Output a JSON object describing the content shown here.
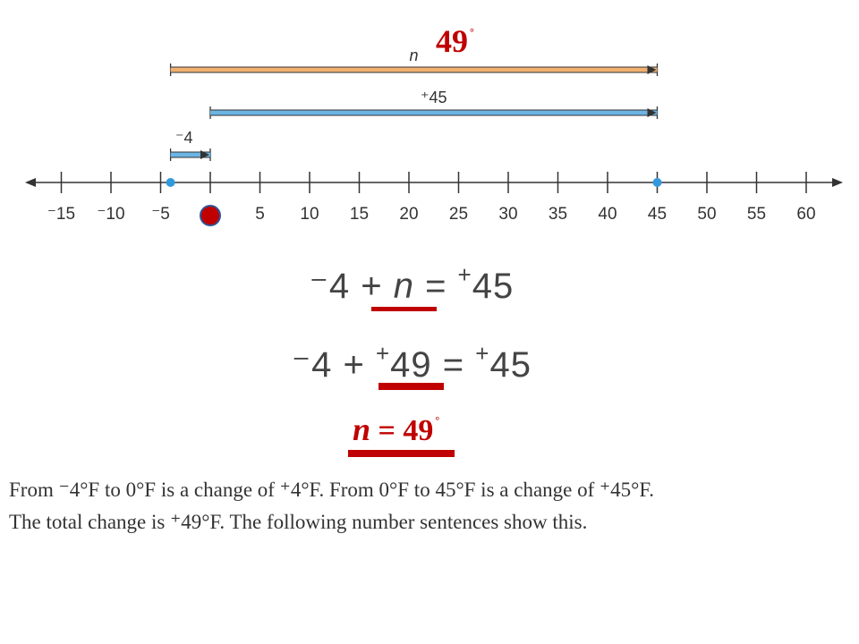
{
  "number_line": {
    "ticks": [
      "⁻15",
      "⁻10",
      "⁻5",
      "0",
      "5",
      "10",
      "15",
      "20",
      "25",
      "30",
      "35",
      "40",
      "45",
      "50",
      "55",
      "60"
    ],
    "tick_values": [
      -15,
      -10,
      -5,
      0,
      5,
      10,
      15,
      20,
      25,
      30,
      35,
      40,
      45,
      50,
      55,
      60
    ],
    "points": [
      -4,
      45
    ],
    "marker_value": 0,
    "arrows": [
      {
        "label": "n",
        "from": -4,
        "to": 45,
        "color": "#f0b070"
      },
      {
        "label": "⁺45",
        "from": 0,
        "to": 45,
        "color": "#6cb4e4"
      },
      {
        "label": "⁻4",
        "from": -4,
        "to": 0,
        "color": "#6cb4e4"
      }
    ],
    "point_color": "#3399dd",
    "marker_color": "#c00000"
  },
  "annotation_top": {
    "value": "49",
    "degree": "°"
  },
  "equation1": {
    "part1": "⁻4 + ",
    "var": "n",
    "part2": " = ",
    "sign": "+",
    "value": "45"
  },
  "equation2": {
    "part1": "⁻4 + ",
    "sign1": "+",
    "value1": "49",
    "part2": " = ",
    "sign2": "+",
    "value2": "45"
  },
  "result": {
    "var": "n",
    "eq": " = 49",
    "degree": "°"
  },
  "explanation": {
    "line1": "From ⁻4°F to 0°F is a change of ⁺4°F. From 0°F to 45°F is a change of ⁺45°F.",
    "line2": "The total change is ⁺49°F. The following number sentences show this."
  },
  "colors": {
    "accent_red": "#c00000",
    "text": "#333333"
  }
}
